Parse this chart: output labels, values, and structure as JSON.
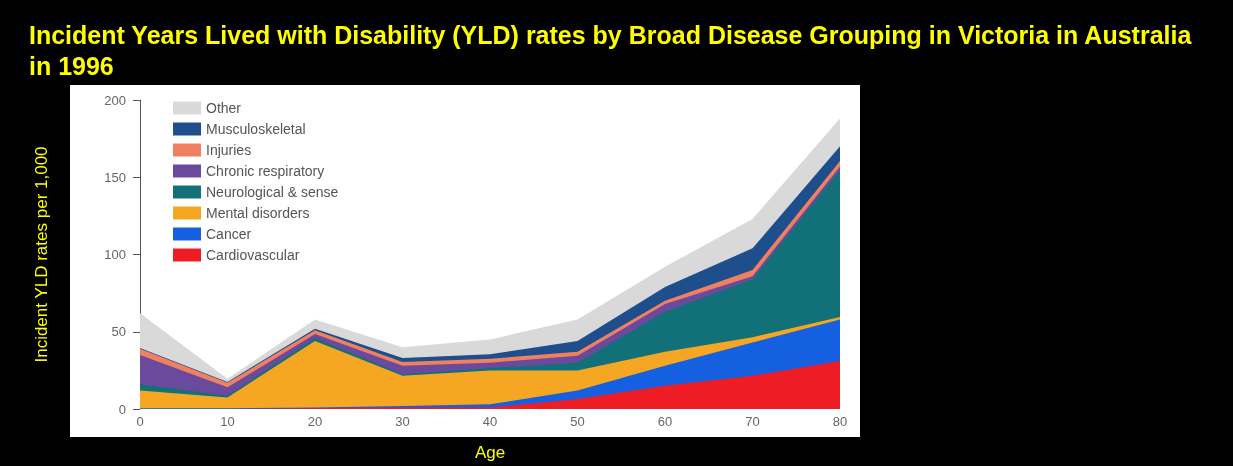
{
  "chart_data": {
    "type": "area",
    "title": "Incident Years Lived with Disability (YLD) rates by Broad Disease Grouping in Victoria in Australia in 1996",
    "xlabel": "Age",
    "ylabel": "Incident YLD rates per 1,000",
    "stacked": true,
    "x": [
      0,
      10,
      20,
      30,
      40,
      50,
      60,
      70,
      80
    ],
    "xlim": [
      0,
      80
    ],
    "xticks": [
      0,
      10,
      20,
      30,
      40,
      50,
      60,
      70,
      80
    ],
    "ylim": [
      0,
      200
    ],
    "yticks": [
      0,
      50,
      100,
      150,
      200
    ],
    "grid": false,
    "legend": "top left",
    "marker": "none",
    "series": [
      {
        "name": "Cardiovascular",
        "color": "#ee1c25",
        "values": [
          0,
          0,
          0.5,
          1,
          1,
          6.5,
          15,
          21.5,
          31
        ]
      },
      {
        "name": "Cancer",
        "color": "#1560e0",
        "values": [
          0.5,
          0.5,
          0.5,
          1,
          2,
          5.5,
          13,
          21.5,
          27
        ]
      },
      {
        "name": "Mental disorders",
        "color": "#f5a623",
        "values": [
          11.5,
          7,
          43,
          19.5,
          22,
          13,
          9,
          3.5,
          1.5
        ]
      },
      {
        "name": "Neurological & sense",
        "color": "#127078",
        "values": [
          4,
          1,
          2,
          1,
          1.5,
          5,
          26,
          37.5,
          95
        ]
      },
      {
        "name": "Chronic respiratory",
        "color": "#6a4a9c",
        "values": [
          19,
          5.5,
          2.5,
          5.5,
          3.5,
          4.5,
          5,
          2,
          2.5
        ]
      },
      {
        "name": "Injuries",
        "color": "#f08060",
        "values": [
          4,
          3,
          2.5,
          2.5,
          2.5,
          2.5,
          2,
          4,
          3.5
        ]
      },
      {
        "name": "Musculoskeletal",
        "color": "#1f4e8c",
        "values": [
          0.5,
          0.5,
          1,
          2.5,
          3,
          7,
          9,
          14,
          9.5
        ]
      },
      {
        "name": "Other",
        "color": "#d9d9d9",
        "values": [
          22.5,
          2,
          6,
          7,
          9.5,
          14,
          13,
          19,
          18
        ]
      }
    ]
  }
}
